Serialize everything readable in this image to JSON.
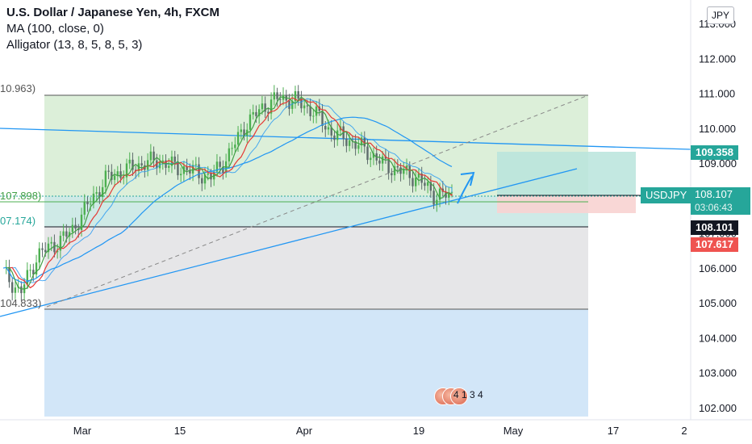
{
  "legend": {
    "title": "U.S. Dollar / Japanese Yen, 4h, FXCM",
    "ma": "MA (100, close, 0)",
    "alligator": "Alligator (13, 8, 5, 8, 5, 3)"
  },
  "currency": "JPY",
  "left_labels": {
    "high": "10.963)",
    "mid": "107.898)",
    "low_fib": "07.174)",
    "bottom": "104.833)"
  },
  "price_tags": {
    "trendline": "109.358",
    "symbol": "USDJPY",
    "last_price": "108.107",
    "countdown": "03:06:43",
    "bid": "108.101",
    "stop": "107.617"
  },
  "ticker": {
    "text": "4 1 3 4"
  },
  "colors": {
    "up": "#26a69a",
    "down": "#ef5350",
    "candle": "#4caf50",
    "trendline": "#2196f3",
    "ma": "#2196f3",
    "jaw": "#2196f3",
    "teeth": "#e53935",
    "lips": "#43a047",
    "zone_green": "#dcefd9",
    "zone_teal": "#cfeae7",
    "zone_grey": "#e3e3e5",
    "zone_blue": "#d2e6f8",
    "tp_zone": "#b8e4dc",
    "sl_zone": "#f8d3d1"
  },
  "chart_data": {
    "type": "line",
    "title": "U.S. Dollar / Japanese Yen, 4h, FXCM",
    "y_axis": {
      "ticks": [
        "113.000",
        "112.000",
        "111.000",
        "110.000",
        "109.000",
        "108.000",
        "107.000",
        "106.000",
        "105.000",
        "104.000",
        "103.000",
        "102.000"
      ],
      "ylim": [
        101.8,
        113.4
      ]
    },
    "x_axis": {
      "ticks": [
        "Mar",
        "15",
        "Apr",
        "19",
        "May",
        "17",
        "2"
      ]
    },
    "price_path": {
      "x": [
        "Feb 23",
        "Feb 25",
        "Feb 27",
        "Mar 1",
        "Mar 3",
        "Mar 5",
        "Mar 8",
        "Mar 10",
        "Mar 12",
        "Mar 15",
        "Mar 17",
        "Mar 19",
        "Mar 22",
        "Mar 24",
        "Mar 26",
        "Mar 29",
        "Mar 31",
        "Apr 2",
        "Apr 5",
        "Apr 7",
        "Apr 9",
        "Apr 12",
        "Apr 14",
        "Apr 16",
        "Apr 19",
        "Apr 21",
        "Apr 22"
      ],
      "close": [
        105.9,
        105.3,
        106.4,
        106.7,
        107.1,
        107.9,
        108.6,
        108.8,
        109.0,
        109.1,
        108.9,
        108.8,
        108.6,
        109.2,
        110.1,
        110.6,
        110.9,
        110.8,
        110.5,
        109.9,
        109.7,
        109.4,
        109.0,
        108.8,
        108.6,
        108.1,
        108.1
      ]
    },
    "levels": {
      "fib_high": 110.963,
      "fib_mid": 107.898,
      "fib_low": 107.174,
      "fib_base": 104.833,
      "current": 108.107,
      "bid": 108.101,
      "stop": 107.617,
      "target": 109.358
    },
    "annotations": [
      "Long position USDJPY",
      "Upward arrow projection"
    ]
  }
}
